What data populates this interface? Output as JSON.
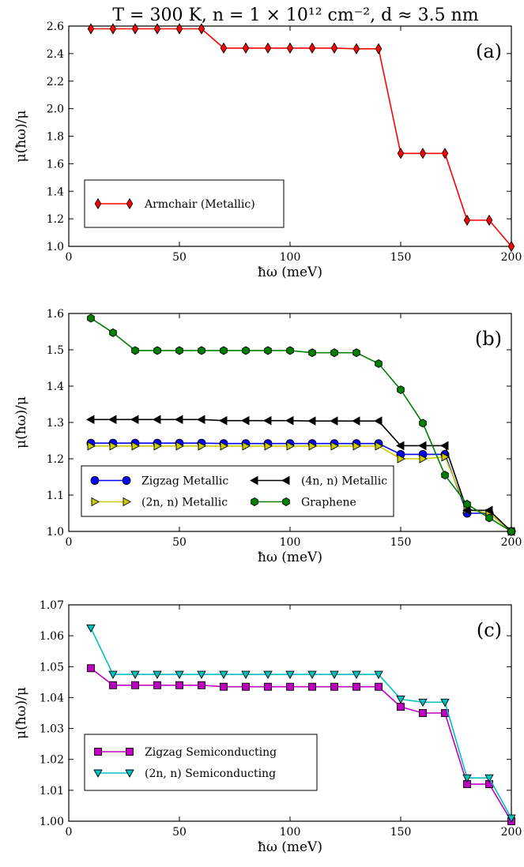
{
  "figure_title": "T = 300 K, n = 1 × 10¹² cm⁻², d ≈ 3.5 nm",
  "chart_data": [
    {
      "type": "line",
      "panel_label": "(a)",
      "xlabel": "ħω (meV)",
      "ylabel": "μ(ħω)/μ",
      "xlim": [
        0,
        200
      ],
      "ylim": [
        1.0,
        2.6
      ],
      "xticks": [
        "0",
        "50",
        "100",
        "150",
        "200"
      ],
      "yticks": [
        "1.0",
        "1.2",
        "1.4",
        "1.6",
        "1.8",
        "2.0",
        "2.2",
        "2.4",
        "2.6"
      ],
      "legend_position": "lower-left",
      "legend_columns": 1,
      "series": [
        {
          "name": "Armchair (Metallic)",
          "color": "#ff0000",
          "marker": "diamond",
          "x": [
            10,
            20,
            30,
            40,
            50,
            60,
            70,
            80,
            90,
            100,
            110,
            120,
            130,
            140,
            150,
            160,
            170,
            180,
            190,
            200
          ],
          "y": [
            2.58,
            2.58,
            2.58,
            2.58,
            2.58,
            2.58,
            2.44,
            2.44,
            2.44,
            2.44,
            2.44,
            2.44,
            2.435,
            2.435,
            1.675,
            1.675,
            1.675,
            1.19,
            1.19,
            1.0
          ]
        }
      ]
    },
    {
      "type": "line",
      "panel_label": "(b)",
      "xlabel": "ħω (meV)",
      "ylabel": "μ(ħω)/μ",
      "xlim": [
        0,
        200
      ],
      "ylim": [
        1.0,
        1.6
      ],
      "xticks": [
        "0",
        "50",
        "100",
        "150",
        "200"
      ],
      "yticks": [
        "1.0",
        "1.1",
        "1.2",
        "1.3",
        "1.4",
        "1.5",
        "1.6"
      ],
      "legend_position": "lower-left",
      "legend_columns": 2,
      "series": [
        {
          "name": "Zigzag Metallic",
          "color": "#0000ff",
          "marker": "circle",
          "x": [
            10,
            20,
            30,
            40,
            50,
            60,
            70,
            80,
            90,
            100,
            110,
            120,
            130,
            140,
            150,
            160,
            170,
            180,
            190,
            200
          ],
          "y": [
            1.243,
            1.243,
            1.243,
            1.243,
            1.243,
            1.243,
            1.242,
            1.242,
            1.242,
            1.242,
            1.242,
            1.242,
            1.242,
            1.242,
            1.212,
            1.212,
            1.212,
            1.05,
            1.05,
            1.0
          ]
        },
        {
          "name": "(2n, n) Metallic",
          "color": "#cccc00",
          "marker": "triangle-right",
          "x": [
            10,
            20,
            30,
            40,
            50,
            60,
            70,
            80,
            90,
            100,
            110,
            120,
            130,
            140,
            150,
            160,
            170,
            180,
            190,
            200
          ],
          "y": [
            1.235,
            1.235,
            1.235,
            1.235,
            1.235,
            1.235,
            1.235,
            1.235,
            1.235,
            1.235,
            1.235,
            1.235,
            1.235,
            1.235,
            1.2,
            1.2,
            1.205,
            1.06,
            1.05,
            1.0
          ]
        },
        {
          "name": "(4n, n) Metallic",
          "color": "#000000",
          "marker": "triangle-left",
          "x": [
            10,
            20,
            30,
            40,
            50,
            60,
            70,
            80,
            90,
            100,
            110,
            120,
            130,
            140,
            150,
            160,
            170,
            180,
            190,
            200
          ],
          "y": [
            1.308,
            1.308,
            1.308,
            1.308,
            1.308,
            1.308,
            1.305,
            1.305,
            1.305,
            1.305,
            1.304,
            1.304,
            1.304,
            1.304,
            1.236,
            1.236,
            1.236,
            1.058,
            1.058,
            1.0
          ]
        },
        {
          "name": "Graphene",
          "color": "#008000",
          "marker": "hexagon",
          "x": [
            10,
            20,
            30,
            40,
            50,
            60,
            70,
            80,
            90,
            100,
            110,
            120,
            130,
            140,
            150,
            160,
            170,
            180,
            190,
            200
          ],
          "y": [
            1.587,
            1.547,
            1.498,
            1.498,
            1.498,
            1.498,
            1.498,
            1.498,
            1.498,
            1.498,
            1.492,
            1.492,
            1.492,
            1.462,
            1.39,
            1.298,
            1.155,
            1.075,
            1.037,
            1.0
          ]
        }
      ]
    },
    {
      "type": "line",
      "panel_label": "(c)",
      "xlabel": "ħω (meV)",
      "ylabel": "μ(ħω)/μ",
      "xlim": [
        0,
        200
      ],
      "ylim": [
        1.0,
        1.07
      ],
      "xticks": [
        "0",
        "50",
        "100",
        "150",
        "200"
      ],
      "yticks": [
        "1.00",
        "1.01",
        "1.02",
        "1.03",
        "1.04",
        "1.05",
        "1.06",
        "1.07"
      ],
      "legend_position": "lower-left",
      "legend_columns": 1,
      "series": [
        {
          "name": "Zigzag Semiconducting",
          "color": "#c000c0",
          "marker": "square",
          "x": [
            10,
            20,
            30,
            40,
            50,
            60,
            70,
            80,
            90,
            100,
            110,
            120,
            130,
            140,
            150,
            160,
            170,
            180,
            190,
            200
          ],
          "y": [
            1.0495,
            1.044,
            1.044,
            1.044,
            1.044,
            1.044,
            1.0435,
            1.0435,
            1.0435,
            1.0435,
            1.0435,
            1.0435,
            1.0435,
            1.0435,
            1.037,
            1.035,
            1.035,
            1.012,
            1.012,
            1.0
          ]
        },
        {
          "name": "(2n, n) Semiconducting",
          "color": "#00c0c0",
          "marker": "triangle-down",
          "x": [
            10,
            20,
            30,
            40,
            50,
            60,
            70,
            80,
            90,
            100,
            110,
            120,
            130,
            140,
            150,
            160,
            170,
            180,
            190,
            200
          ],
          "y": [
            1.0625,
            1.0475,
            1.0475,
            1.0475,
            1.0475,
            1.0475,
            1.0475,
            1.0475,
            1.0475,
            1.0475,
            1.0475,
            1.0475,
            1.0475,
            1.0475,
            1.0395,
            1.0385,
            1.0385,
            1.014,
            1.014,
            1.001
          ]
        }
      ]
    }
  ]
}
